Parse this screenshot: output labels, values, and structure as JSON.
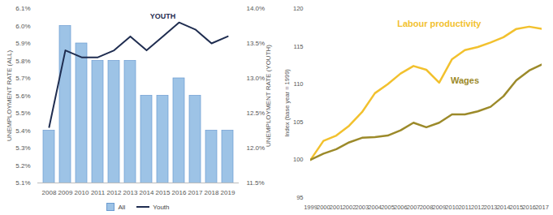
{
  "chart_data": [
    {
      "type": "bar",
      "categories": [
        "2008",
        "2009",
        "2010",
        "2011",
        "2012",
        "2013",
        "2014",
        "2015",
        "2016",
        "2017",
        "2018",
        "2019"
      ],
      "series": [
        {
          "name": "All",
          "type": "bar",
          "color": "#9dc3e6",
          "values": [
            5.4,
            6.0,
            5.9,
            5.8,
            5.8,
            5.8,
            5.6,
            5.6,
            5.7,
            5.6,
            5.4,
            5.4
          ]
        },
        {
          "name": "Youth",
          "type": "line",
          "axis": "y2",
          "color": "#1f2d50",
          "values": [
            12.3,
            13.4,
            13.3,
            13.3,
            13.4,
            13.6,
            13.4,
            13.6,
            13.8,
            13.7,
            13.5,
            13.6
          ]
        }
      ],
      "ylabel": "UNEMPLOYMENT RATE (ALL)",
      "y2label": "UNEMPLOYMENT RATE (YOUTH)",
      "ylim": [
        5.1,
        6.1
      ],
      "yticks": [
        {
          "value": 5.1,
          "label": "5.1%"
        },
        {
          "value": 5.2,
          "label": "5.2%"
        },
        {
          "value": 5.3,
          "label": "5.3%"
        },
        {
          "value": 5.4,
          "label": "5.4%"
        },
        {
          "value": 5.5,
          "label": "5.5%"
        },
        {
          "value": 5.6,
          "label": "5.6%"
        },
        {
          "value": 5.7,
          "label": "5.7%"
        },
        {
          "value": 5.8,
          "label": "5.8%"
        },
        {
          "value": 5.9,
          "label": "5.9%"
        },
        {
          "value": 6.0,
          "label": "6.0%"
        },
        {
          "value": 6.1,
          "label": "6.1%"
        }
      ],
      "y2lim": [
        11.5,
        14.0
      ],
      "y2ticks": [
        {
          "value": 11.5,
          "label": "11.5%"
        },
        {
          "value": 12.0,
          "label": "12.0%"
        },
        {
          "value": 12.5,
          "label": "12.5%"
        },
        {
          "value": 13.0,
          "label": "13.0%"
        },
        {
          "value": 13.5,
          "label": "13.5%"
        },
        {
          "value": 14.0,
          "label": "14.0%"
        }
      ],
      "legend": "bottom",
      "annotations": [
        {
          "text": "YOUTH",
          "x": "2015",
          "y": 13.85
        }
      ]
    },
    {
      "type": "line",
      "x": [
        1999,
        2000,
        2001,
        2002,
        2003,
        2004,
        2005,
        2006,
        2007,
        2008,
        2009,
        2010,
        2011,
        2012,
        2013,
        2014,
        2015,
        2016,
        2017
      ],
      "series": [
        {
          "name": "Labour productivity",
          "color": "#f2c12e",
          "values": [
            100,
            102.5,
            103.2,
            104.5,
            106.3,
            108.8,
            110,
            111.4,
            112.4,
            111.9,
            110.2,
            113.3,
            114.5,
            114.9,
            115.5,
            116.2,
            117.3,
            117.6,
            117.3
          ]
        },
        {
          "name": "Wages",
          "color": "#9c8a2a",
          "values": [
            100,
            100.8,
            101.4,
            102.3,
            102.9,
            103.0,
            103.2,
            103.9,
            104.9,
            104.3,
            104.9,
            106.0,
            106.0,
            106.4,
            107.0,
            108.4,
            110.5,
            111.8,
            112.6
          ]
        }
      ],
      "ylabel": "Index (base year = 1999)",
      "xlim": [
        1999,
        2017
      ],
      "xticks": [
        1999,
        2000,
        2001,
        2002,
        2003,
        2004,
        2005,
        2006,
        2007,
        2008,
        2009,
        2010,
        2011,
        2012,
        2013,
        2014,
        2015,
        2016,
        2017
      ],
      "ylim": [
        95,
        120
      ],
      "yticks": [
        95,
        100,
        105,
        110,
        115,
        120
      ]
    }
  ]
}
